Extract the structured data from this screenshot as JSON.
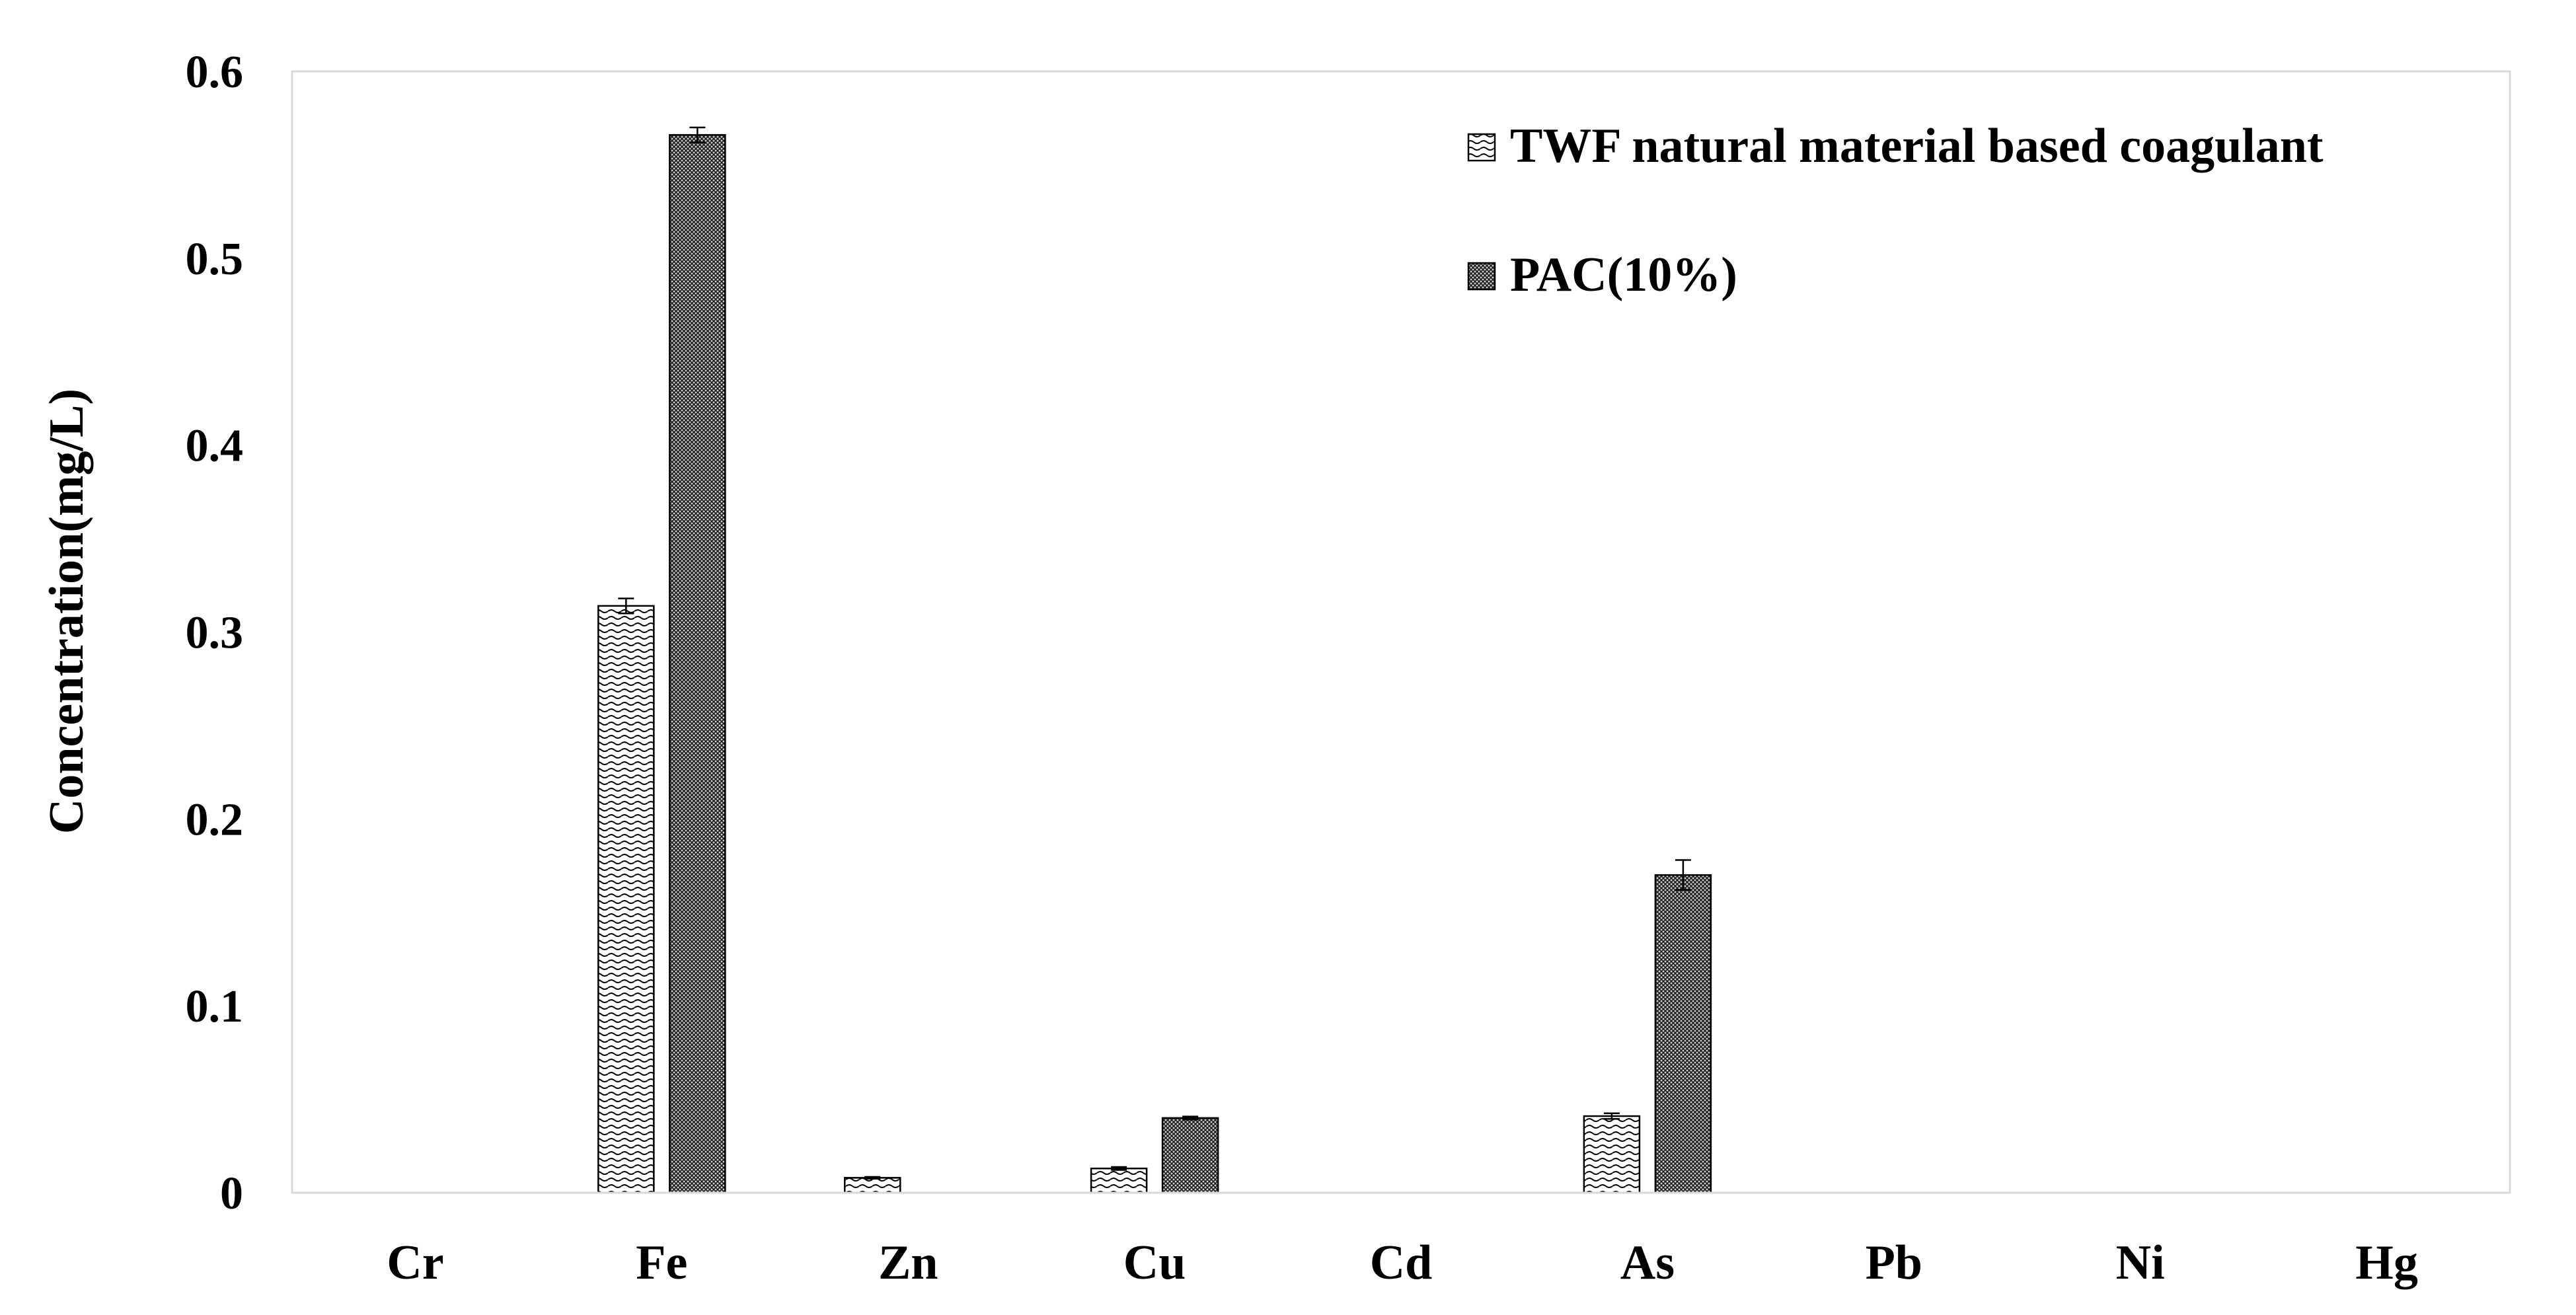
{
  "chart_data": {
    "type": "bar",
    "title": "",
    "xlabel": "",
    "ylabel": "Concentration(mg/L)",
    "ylim": [
      0,
      0.6
    ],
    "yticks": [
      0,
      0.1,
      0.2,
      0.3,
      0.4,
      0.5,
      0.6
    ],
    "ytick_labels": [
      "0",
      "0.1",
      "0.2",
      "0.3",
      "0.4",
      "0.5",
      "0.6"
    ],
    "grid": false,
    "legend_position": "top-right",
    "categories": [
      "Cr",
      "Fe",
      "Zn",
      "Cu",
      "Cd",
      "As",
      "Pb",
      "Ni",
      "Hg"
    ],
    "series": [
      {
        "name": "TWF natural material based coagulant",
        "pattern": "wave-hatch",
        "color": "#000000",
        "values": [
          0,
          0.314,
          0.008,
          0.013,
          0,
          0.041,
          0,
          0,
          0
        ],
        "errors": [
          0,
          0.004,
          0.0005,
          0.0008,
          0,
          0.0015,
          0,
          0,
          0
        ]
      },
      {
        "name": "PAC(10%)",
        "pattern": "dense-hatch",
        "color": "#000000",
        "values": [
          0,
          0.566,
          0,
          0.04,
          0,
          0.17,
          0,
          0,
          0
        ],
        "errors": [
          0,
          0.004,
          0,
          0.0008,
          0,
          0.008,
          0,
          0,
          0
        ]
      }
    ]
  }
}
